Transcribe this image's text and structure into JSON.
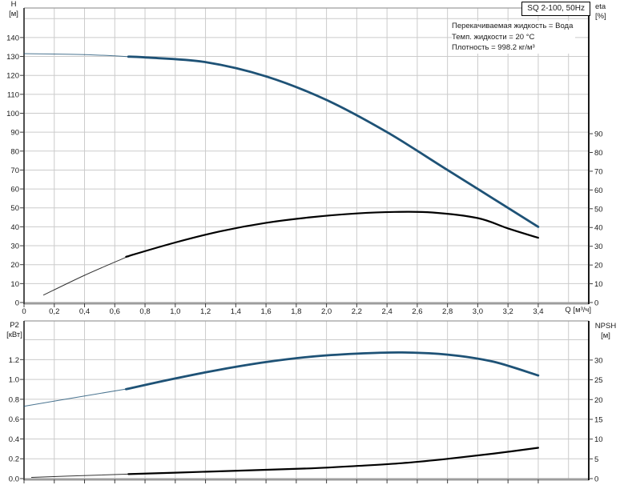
{
  "pump": {
    "title": "SQ 2-100, 50Hz"
  },
  "info": {
    "line1": "Перекачиваемая жидкость = Вода",
    "line2": "Темп. жидкости = 20 °C",
    "line3": "Плотность = 998.2 кг/м³"
  },
  "labels": {
    "q_axis": "Q [м³/ч]",
    "h_title": "H",
    "h_unit": "[м]",
    "eta_title": "eta",
    "eta_unit": "[%]",
    "p2_title": "P2",
    "p2_unit": "[кВт]",
    "npsh_title": "NPSH",
    "npsh_unit": "[м]"
  },
  "colors": {
    "curve_primary": "#1e5276",
    "curve_secondary": "#000000",
    "grid": "#cbcbcb",
    "border_gray": "#9d9d9d",
    "border_dark": "#3c3c3c",
    "border_black": "#000000",
    "text": "#1a1a1a"
  },
  "chart_data": [
    {
      "type": "line",
      "id": "performance-curve",
      "title": "SQ 2-100, 50Hz",
      "xlabel": "Q [м³/ч]",
      "x_range": [
        0,
        3.734
      ],
      "x_ticks": {
        "values": [
          0,
          0.2,
          0.4,
          0.6,
          0.8,
          1.0,
          1.2,
          1.4,
          1.6,
          1.8,
          2.0,
          2.2,
          2.4,
          2.6,
          2.8,
          3.0,
          3.2,
          3.4
        ],
        "labels": [
          "0",
          "0,2",
          "0,4",
          "0,6",
          "0,8",
          "1,0",
          "1,2",
          "1,4",
          "1,6",
          "1,8",
          "2,0",
          "2,2",
          "2,4",
          "2,6",
          "2,8",
          "3,0",
          "3,2",
          "3,4"
        ],
        "show_labels": true
      },
      "left_axis": {
        "label": "H [м]",
        "range": [
          0,
          155.6
        ],
        "tick_values": [
          0,
          10,
          20,
          30,
          40,
          50,
          60,
          70,
          80,
          90,
          100,
          110,
          120,
          130,
          140
        ],
        "tick_labels": [
          "0",
          "10",
          "20",
          "30",
          "40",
          "50",
          "60",
          "70",
          "80",
          "90",
          "100",
          "110",
          "120",
          "130",
          "140"
        ]
      },
      "right_axis": {
        "label": "eta [%]",
        "range": [
          0,
          157
        ],
        "tick_values": [
          0,
          10,
          20,
          30,
          40,
          50,
          60,
          70,
          80,
          90
        ],
        "tick_labels": [
          "0",
          "10",
          "20",
          "30",
          "40",
          "50",
          "60",
          "70",
          "80",
          "90"
        ]
      },
      "series": [
        {
          "name": "H",
          "axis": "left",
          "color_key": "curve_primary",
          "thick_from": 0.69,
          "x": [
            0,
            0.4,
            0.8,
            1.2,
            1.6,
            2.0,
            2.4,
            2.8,
            3.1,
            3.4
          ],
          "y": [
            131.5,
            131.0,
            129.5,
            127.0,
            119.5,
            107.0,
            90.0,
            70.0,
            55.0,
            40.0
          ]
        },
        {
          "name": "eta",
          "axis": "right",
          "color_key": "curve_secondary",
          "thick_from": 0.69,
          "x": [
            0.13,
            0.4,
            0.7,
            1.0,
            1.3,
            1.6,
            1.9,
            2.2,
            2.45,
            2.7,
            3.0,
            3.2,
            3.4
          ],
          "y": [
            4.0,
            14.5,
            25.0,
            32.0,
            38.0,
            42.5,
            45.5,
            47.5,
            48.3,
            48.0,
            45.0,
            39.5,
            34.5
          ]
        }
      ]
    },
    {
      "type": "line",
      "id": "power-npsh-curve",
      "xlabel": "",
      "x_range": [
        0,
        3.734
      ],
      "x_ticks": {
        "values": [
          0,
          0.2,
          0.4,
          0.6,
          0.8,
          1.0,
          1.2,
          1.4,
          1.6,
          1.8,
          2.0,
          2.2,
          2.4,
          2.6,
          2.8,
          3.0,
          3.2,
          3.4
        ],
        "labels": [],
        "show_labels": false
      },
      "left_axis": {
        "label": "P2 [кВт]",
        "range": [
          0,
          1.59
        ],
        "tick_values": [
          0,
          0.2,
          0.4,
          0.6,
          0.8,
          1.0,
          1.2
        ],
        "tick_labels": [
          "0.0",
          "0.2",
          "0.4",
          "0.6",
          "0.8",
          "1.0",
          "1.2"
        ]
      },
      "right_axis": {
        "label": "NPSH [м]",
        "range": [
          0,
          39.9
        ],
        "tick_values": [
          0,
          5,
          10,
          15,
          20,
          25,
          30
        ],
        "tick_labels": [
          "0",
          "5",
          "10",
          "15",
          "20",
          "25",
          "30"
        ]
      },
      "series": [
        {
          "name": "P2",
          "axis": "left",
          "color_key": "curve_primary",
          "thick_from": 0.69,
          "x": [
            0,
            0.35,
            0.7,
            1.0,
            1.3,
            1.6,
            1.9,
            2.2,
            2.5,
            2.8,
            3.1,
            3.4
          ],
          "y": [
            0.73,
            0.82,
            0.91,
            1.01,
            1.1,
            1.175,
            1.23,
            1.26,
            1.272,
            1.25,
            1.18,
            1.04
          ]
        },
        {
          "name": "NPSH",
          "axis": "right",
          "color_key": "curve_secondary",
          "thick_from": 0.69,
          "x": [
            0.05,
            0.5,
            1.0,
            1.5,
            1.9,
            2.2,
            2.5,
            2.8,
            3.1,
            3.4
          ],
          "y": [
            0.3,
            0.9,
            1.5,
            2.1,
            2.6,
            3.2,
            3.9,
            5.0,
            6.3,
            7.8
          ]
        }
      ]
    }
  ]
}
